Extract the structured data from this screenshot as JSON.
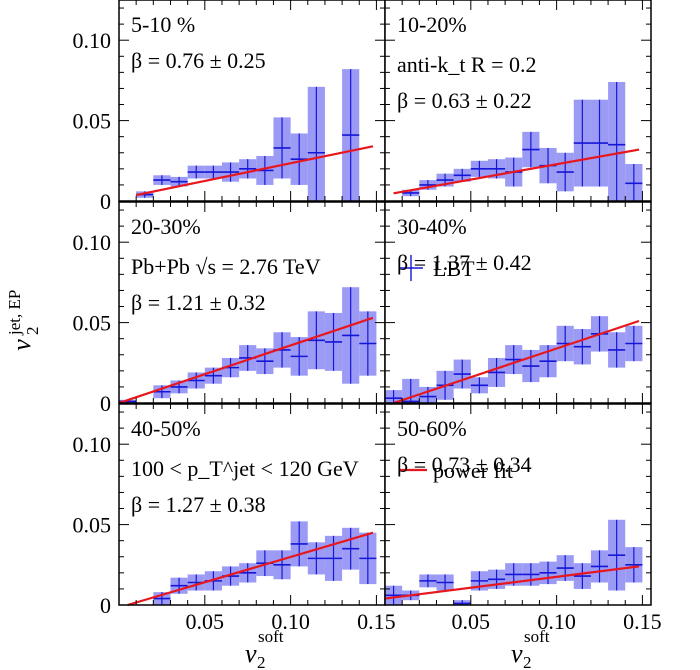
{
  "colors": {
    "band": "#8a8af5",
    "data": "#1616d6",
    "fit": "#e8171d",
    "frame": "#000000",
    "background": "#ffffff"
  },
  "axes": {
    "x_tick_labels": [
      "0.05",
      "0.10",
      "0.15"
    ],
    "x_tick_values": [
      0.05,
      0.1,
      0.15
    ],
    "y_tick_labels": [
      "0",
      "0.05",
      "0.10"
    ],
    "y_tick_values": [
      0,
      0.05,
      0.1
    ]
  },
  "chart_data": {
    "type": "scatter",
    "xlabel": "v_2^soft",
    "ylabel": "v_2^jet,EP",
    "xlim": [
      0.0,
      0.155
    ],
    "ylim": [
      0.0,
      0.125
    ],
    "grid": false,
    "legend": {
      "placement": "panel-right",
      "entries": [
        "LBT",
        "power fit"
      ]
    },
    "panels": [
      {
        "centrality": "5-10 %",
        "beta": "0.76 ± 0.25",
        "points": [
          {
            "x": 0.015,
            "y": 0.004,
            "err": 0.002
          },
          {
            "x": 0.025,
            "y": 0.013,
            "err": 0.003
          },
          {
            "x": 0.035,
            "y": 0.012,
            "err": 0.003
          },
          {
            "x": 0.045,
            "y": 0.018,
            "err": 0.004
          },
          {
            "x": 0.055,
            "y": 0.018,
            "err": 0.004
          },
          {
            "x": 0.065,
            "y": 0.018,
            "err": 0.006
          },
          {
            "x": 0.075,
            "y": 0.02,
            "err": 0.006
          },
          {
            "x": 0.085,
            "y": 0.019,
            "err": 0.009
          },
          {
            "x": 0.095,
            "y": 0.033,
            "err": 0.019
          },
          {
            "x": 0.105,
            "y": 0.026,
            "err": 0.016
          },
          {
            "x": 0.115,
            "y": 0.03,
            "err": 0.041
          },
          {
            "x": 0.135,
            "y": 0.041,
            "err": 0.041
          }
        ],
        "fit": [
          [
            0.01,
            0.0037
          ],
          [
            0.148,
            0.034
          ]
        ]
      },
      {
        "centrality": "10-20%",
        "beta": "0.63 ± 0.22",
        "note": "anti-k_t R = 0.2",
        "points": [
          {
            "x": 0.015,
            "y": 0.005,
            "err": 0.002
          },
          {
            "x": 0.025,
            "y": 0.01,
            "err": 0.003
          },
          {
            "x": 0.035,
            "y": 0.013,
            "err": 0.004
          },
          {
            "x": 0.045,
            "y": 0.016,
            "err": 0.004
          },
          {
            "x": 0.055,
            "y": 0.02,
            "err": 0.005
          },
          {
            "x": 0.065,
            "y": 0.02,
            "err": 0.006
          },
          {
            "x": 0.075,
            "y": 0.018,
            "err": 0.009
          },
          {
            "x": 0.085,
            "y": 0.032,
            "err": 0.011
          },
          {
            "x": 0.095,
            "y": 0.022,
            "err": 0.011
          },
          {
            "x": 0.105,
            "y": 0.018,
            "err": 0.012
          },
          {
            "x": 0.115,
            "y": 0.036,
            "err": 0.027
          },
          {
            "x": 0.125,
            "y": 0.036,
            "err": 0.027
          },
          {
            "x": 0.135,
            "y": 0.035,
            "err": 0.039
          },
          {
            "x": 0.145,
            "y": 0.011,
            "err": 0.012
          }
        ],
        "fit": [
          [
            0.005,
            0.0048
          ],
          [
            0.148,
            0.032
          ]
        ]
      },
      {
        "centrality": "20-30%",
        "beta": "1.21 ± 0.32",
        "note": "Pb+Pb √s = 2.76 TeV",
        "points": [
          {
            "x": 0.005,
            "y": 0.001,
            "err": 0.001
          },
          {
            "x": 0.025,
            "y": 0.007,
            "err": 0.004
          },
          {
            "x": 0.035,
            "y": 0.01,
            "err": 0.004
          },
          {
            "x": 0.045,
            "y": 0.014,
            "err": 0.005
          },
          {
            "x": 0.055,
            "y": 0.017,
            "err": 0.005
          },
          {
            "x": 0.065,
            "y": 0.022,
            "err": 0.006
          },
          {
            "x": 0.075,
            "y": 0.028,
            "err": 0.008
          },
          {
            "x": 0.085,
            "y": 0.026,
            "err": 0.008
          },
          {
            "x": 0.095,
            "y": 0.033,
            "err": 0.011
          },
          {
            "x": 0.105,
            "y": 0.029,
            "err": 0.012
          },
          {
            "x": 0.115,
            "y": 0.039,
            "err": 0.018
          },
          {
            "x": 0.125,
            "y": 0.038,
            "err": 0.018
          },
          {
            "x": 0.135,
            "y": 0.042,
            "err": 0.03
          },
          {
            "x": 0.145,
            "y": 0.037,
            "err": 0.02
          }
        ],
        "fit": [
          [
            0.0,
            0.0
          ],
          [
            0.148,
            0.053
          ]
        ]
      },
      {
        "centrality": "30-40%",
        "beta": "1.37 ± 0.42",
        "legend_label": "LBT",
        "points": [
          {
            "x": 0.005,
            "y": 0.003,
            "err": 0.005
          },
          {
            "x": 0.015,
            "y": 0.001,
            "err": 0.014
          },
          {
            "x": 0.025,
            "y": 0.004,
            "err": 0.006
          },
          {
            "x": 0.035,
            "y": 0.011,
            "err": 0.009
          },
          {
            "x": 0.045,
            "y": 0.018,
            "err": 0.009
          },
          {
            "x": 0.055,
            "y": 0.011,
            "err": 0.005
          },
          {
            "x": 0.065,
            "y": 0.019,
            "err": 0.009
          },
          {
            "x": 0.075,
            "y": 0.027,
            "err": 0.009
          },
          {
            "x": 0.085,
            "y": 0.023,
            "err": 0.01
          },
          {
            "x": 0.095,
            "y": 0.026,
            "err": 0.01
          },
          {
            "x": 0.105,
            "y": 0.037,
            "err": 0.011
          },
          {
            "x": 0.115,
            "y": 0.035,
            "err": 0.011
          },
          {
            "x": 0.125,
            "y": 0.043,
            "err": 0.011
          },
          {
            "x": 0.135,
            "y": 0.033,
            "err": 0.011
          },
          {
            "x": 0.145,
            "y": 0.037,
            "err": 0.011
          }
        ],
        "fit": [
          [
            0.005,
            0.0
          ],
          [
            0.148,
            0.051
          ]
        ]
      },
      {
        "centrality": "40-50%",
        "beta": "1.27 ± 0.38",
        "note": "100 < p_T^jet < 120 GeV",
        "points": [
          {
            "x": 0.025,
            "y": 0.004,
            "err": 0.004
          },
          {
            "x": 0.035,
            "y": 0.012,
            "err": 0.005
          },
          {
            "x": 0.045,
            "y": 0.014,
            "err": 0.005
          },
          {
            "x": 0.055,
            "y": 0.015,
            "err": 0.006
          },
          {
            "x": 0.065,
            "y": 0.018,
            "err": 0.006
          },
          {
            "x": 0.075,
            "y": 0.02,
            "err": 0.006
          },
          {
            "x": 0.085,
            "y": 0.026,
            "err": 0.008
          },
          {
            "x": 0.095,
            "y": 0.025,
            "err": 0.009
          },
          {
            "x": 0.105,
            "y": 0.038,
            "err": 0.014
          },
          {
            "x": 0.115,
            "y": 0.029,
            "err": 0.01
          },
          {
            "x": 0.125,
            "y": 0.029,
            "err": 0.014
          },
          {
            "x": 0.135,
            "y": 0.035,
            "err": 0.013
          },
          {
            "x": 0.145,
            "y": 0.029,
            "err": 0.016
          }
        ],
        "fit": [
          [
            0.005,
            0.0
          ],
          [
            0.148,
            0.045
          ]
        ]
      },
      {
        "centrality": "50-60%",
        "beta": "0.73 ± 0.34",
        "legend_label": "power fit",
        "points": [
          {
            "x": 0.005,
            "y": 0.006,
            "err": 0.006
          },
          {
            "x": 0.015,
            "y": 0.006,
            "err": 0.003
          },
          {
            "x": 0.025,
            "y": 0.015,
            "err": 0.004
          },
          {
            "x": 0.035,
            "y": 0.014,
            "err": 0.005
          },
          {
            "x": 0.045,
            "y": 0.001,
            "err": 0.002
          },
          {
            "x": 0.055,
            "y": 0.015,
            "err": 0.006
          },
          {
            "x": 0.065,
            "y": 0.016,
            "err": 0.006
          },
          {
            "x": 0.075,
            "y": 0.019,
            "err": 0.007
          },
          {
            "x": 0.085,
            "y": 0.019,
            "err": 0.007
          },
          {
            "x": 0.095,
            "y": 0.02,
            "err": 0.007
          },
          {
            "x": 0.105,
            "y": 0.023,
            "err": 0.008
          },
          {
            "x": 0.115,
            "y": 0.018,
            "err": 0.008
          },
          {
            "x": 0.125,
            "y": 0.024,
            "err": 0.01
          },
          {
            "x": 0.135,
            "y": 0.031,
            "err": 0.022
          },
          {
            "x": 0.145,
            "y": 0.025,
            "err": 0.011
          }
        ],
        "fit": [
          [
            0.0,
            0.004
          ],
          [
            0.148,
            0.024
          ]
        ]
      }
    ]
  }
}
